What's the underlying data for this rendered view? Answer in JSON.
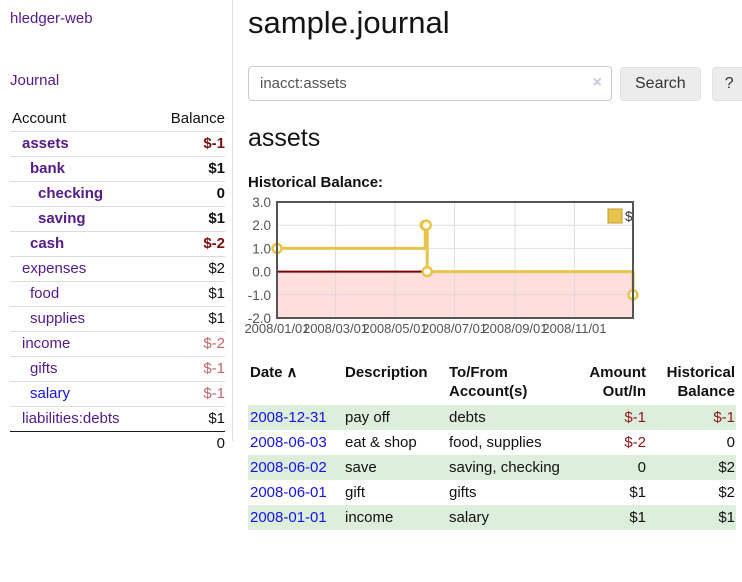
{
  "app": {
    "brand": "hledger-web",
    "nav_journal": "Journal"
  },
  "sidebar": {
    "accounts_header": {
      "account": "Account",
      "balance": "Balance"
    },
    "accounts": [
      {
        "name": "assets",
        "balance": "$-1",
        "depth": 1,
        "bold": true,
        "balance_tone": "negative",
        "link_tone": "visited"
      },
      {
        "name": "bank",
        "balance": "$1",
        "depth": 2,
        "bold": true,
        "balance_tone": "normal",
        "link_tone": "visited"
      },
      {
        "name": "checking",
        "balance": "0",
        "depth": 3,
        "bold": true,
        "balance_tone": "normal",
        "link_tone": "visited"
      },
      {
        "name": "saving",
        "balance": "$1",
        "depth": 3,
        "bold": true,
        "balance_tone": "normal",
        "link_tone": "visited"
      },
      {
        "name": "cash",
        "balance": "$-2",
        "depth": 2,
        "bold": true,
        "balance_tone": "negative",
        "link_tone": "visited"
      },
      {
        "name": "expenses",
        "balance": "$2",
        "depth": 1,
        "bold": false,
        "balance_tone": "normal",
        "link_tone": "visited"
      },
      {
        "name": "food",
        "balance": "$1",
        "depth": 2,
        "bold": false,
        "balance_tone": "normal",
        "link_tone": "visited"
      },
      {
        "name": "supplies",
        "balance": "$1",
        "depth": 2,
        "bold": false,
        "balance_tone": "normal",
        "link_tone": "visited"
      },
      {
        "name": "income",
        "balance": "$-2",
        "depth": 1,
        "bold": false,
        "balance_tone": "negative-soft",
        "link_tone": "visited"
      },
      {
        "name": "gifts",
        "balance": "$-1",
        "depth": 2,
        "bold": false,
        "balance_tone": "negative-soft",
        "link_tone": "visited"
      },
      {
        "name": "salary",
        "balance": "$-1",
        "depth": 2,
        "bold": false,
        "balance_tone": "negative-soft",
        "link_tone": "unvisited"
      },
      {
        "name": "liabilities:debts",
        "balance": "$1",
        "depth": 1,
        "bold": false,
        "balance_tone": "normal",
        "link_tone": "visited"
      }
    ],
    "total": "0"
  },
  "header": {
    "title": "sample.journal"
  },
  "search": {
    "value": "inacct:assets",
    "clear_icon": "×",
    "button": "Search",
    "help_button": "?"
  },
  "account_page": {
    "title": "assets",
    "chart_label": "Historical Balance:"
  },
  "chart_data": {
    "type": "line",
    "step": true,
    "title": "Historical Balance",
    "legend": [
      {
        "label": "$",
        "color": "#e8c54a"
      }
    ],
    "x": [
      "2008-01-01",
      "2008-06-01",
      "2008-06-02",
      "2008-06-03",
      "2008-12-31"
    ],
    "values": [
      1,
      2,
      2,
      0,
      -1
    ],
    "xlim": [
      "2008-01-01",
      "2008-12-31"
    ],
    "ylim": [
      -2,
      3
    ],
    "x_ticks": [
      "2008/01/01",
      "2008/03/01",
      "2008/05/01",
      "2008/07/01",
      "2008/09/01",
      "2008/11/01"
    ],
    "y_ticks": [
      "3.0",
      "2.0",
      "1.0",
      "0.0",
      "-1.0",
      "-2.0"
    ],
    "grid": true,
    "legend_position": "top-right",
    "series_color": "#e8c54a",
    "marker_fill": "#ffffff",
    "zero_line_color": "#7a0000",
    "negative_region_color": "#ffdede",
    "grid_color": "#d9d9d9",
    "border_color": "#545454",
    "tick_label_color": "#545454"
  },
  "register": {
    "columns": [
      {
        "label": "Date",
        "sort_icon": "∧",
        "align": "left"
      },
      {
        "label": "Description",
        "align": "left"
      },
      {
        "label": "To/From Account(s)",
        "align": "left"
      },
      {
        "label": "Amount Out/In",
        "align": "right"
      },
      {
        "label": "Historical Balance",
        "align": "right"
      }
    ],
    "rows": [
      {
        "date": "2008-12-31",
        "description": "pay off",
        "accounts": "debts",
        "amount": "$-1",
        "amount_neg": true,
        "balance": "$-1",
        "balance_neg": true,
        "striped": true
      },
      {
        "date": "2008-06-03",
        "description": "eat & shop",
        "accounts": "food, supplies",
        "amount": "$-2",
        "amount_neg": true,
        "balance": "0",
        "balance_neg": false,
        "striped": false
      },
      {
        "date": "2008-06-02",
        "description": "save",
        "accounts": "saving, checking",
        "amount": "0",
        "amount_neg": false,
        "balance": "$2",
        "balance_neg": false,
        "striped": true
      },
      {
        "date": "2008-06-01",
        "description": "gift",
        "accounts": "gifts",
        "amount": "$1",
        "amount_neg": false,
        "balance": "$2",
        "balance_neg": false,
        "striped": false
      },
      {
        "date": "2008-01-01",
        "description": "income",
        "accounts": "salary",
        "amount": "$1",
        "amount_neg": false,
        "balance": "$1",
        "balance_neg": false,
        "striped": true
      }
    ]
  }
}
